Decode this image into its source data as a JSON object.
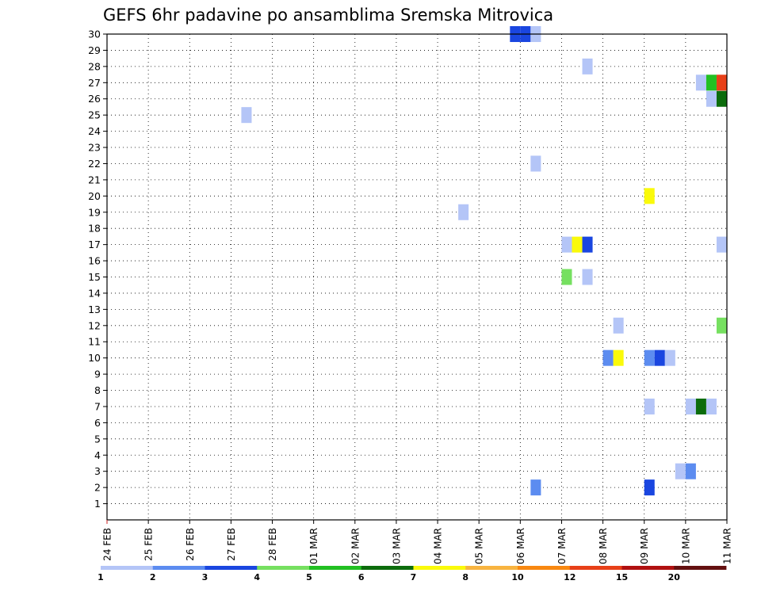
{
  "chart_data": {
    "type": "heatmap",
    "title": "GEFS 6hr padavine po ansamblima Sremska Mitrovica",
    "xlabel": "",
    "ylabel": "",
    "x_tick_labels": [
      "24 FEB",
      "25 FEB",
      "26 FEB",
      "27 FEB",
      "28 FEB",
      "01 MAR",
      "02 MAR",
      "03 MAR",
      "04 MAR",
      "05 MAR",
      "06 MAR",
      "07 MAR",
      "08 MAR",
      "09 MAR",
      "10 MAR",
      "11 MAR"
    ],
    "y_tick_labels": [
      "1",
      "2",
      "3",
      "4",
      "5",
      "6",
      "7",
      "8",
      "9",
      "10",
      "11",
      "12",
      "13",
      "14",
      "15",
      "16",
      "17",
      "18",
      "19",
      "20",
      "21",
      "22",
      "23",
      "24",
      "25",
      "26",
      "27",
      "28",
      "29",
      "30"
    ],
    "xlim_days": [
      0,
      15
    ],
    "ylim": [
      0,
      30
    ],
    "grid": true,
    "colorbar_labels": [
      "1",
      "2",
      "3",
      "4",
      "5",
      "6",
      "7",
      "8",
      "10",
      "12",
      "15",
      "20"
    ],
    "colorbar_colors": [
      "#b4c5f7",
      "#5c8cf0",
      "#1a46e0",
      "#76e060",
      "#22c022",
      "#0c6c0c",
      "#fafa0a",
      "#f8b440",
      "#f88810",
      "#e84018",
      "#b01010",
      "#641010"
    ],
    "cells": [
      {
        "member": 30,
        "day": 10.0,
        "level": 3
      },
      {
        "member": 30,
        "day": 10.25,
        "level": 3
      },
      {
        "member": 30,
        "day": 10.5,
        "level": 1
      },
      {
        "member": 28,
        "day": 11.75,
        "level": 1
      },
      {
        "member": 27,
        "day": 14.5,
        "level": 1
      },
      {
        "member": 27,
        "day": 14.75,
        "level": 5
      },
      {
        "member": 27,
        "day": 15.0,
        "level": 10
      },
      {
        "member": 26,
        "day": 14.75,
        "level": 1
      },
      {
        "member": 26,
        "day": 15.0,
        "level": 6
      },
      {
        "member": 25,
        "day": 3.5,
        "level": 1
      },
      {
        "member": 22,
        "day": 10.5,
        "level": 1
      },
      {
        "member": 20,
        "day": 13.25,
        "level": 7
      },
      {
        "member": 19,
        "day": 8.75,
        "level": 1
      },
      {
        "member": 17,
        "day": 11.25,
        "level": 1
      },
      {
        "member": 17,
        "day": 11.5,
        "level": 7
      },
      {
        "member": 17,
        "day": 11.75,
        "level": 3
      },
      {
        "member": 17,
        "day": 15.0,
        "level": 1
      },
      {
        "member": 15,
        "day": 11.25,
        "level": 4
      },
      {
        "member": 15,
        "day": 11.75,
        "level": 1
      },
      {
        "member": 12,
        "day": 12.5,
        "level": 1
      },
      {
        "member": 12,
        "day": 15.0,
        "level": 4
      },
      {
        "member": 10,
        "day": 12.25,
        "level": 2
      },
      {
        "member": 10,
        "day": 12.5,
        "level": 7
      },
      {
        "member": 10,
        "day": 13.25,
        "level": 2
      },
      {
        "member": 10,
        "day": 13.5,
        "level": 3
      },
      {
        "member": 10,
        "day": 13.75,
        "level": 1
      },
      {
        "member": 7,
        "day": 13.25,
        "level": 1
      },
      {
        "member": 7,
        "day": 14.25,
        "level": 1
      },
      {
        "member": 7,
        "day": 14.5,
        "level": 6
      },
      {
        "member": 7,
        "day": 14.75,
        "level": 1
      },
      {
        "member": 3,
        "day": 14.0,
        "level": 1
      },
      {
        "member": 3,
        "day": 14.25,
        "level": 2
      },
      {
        "member": 2,
        "day": 10.5,
        "level": 2
      },
      {
        "member": 2,
        "day": 13.25,
        "level": 3
      }
    ]
  }
}
